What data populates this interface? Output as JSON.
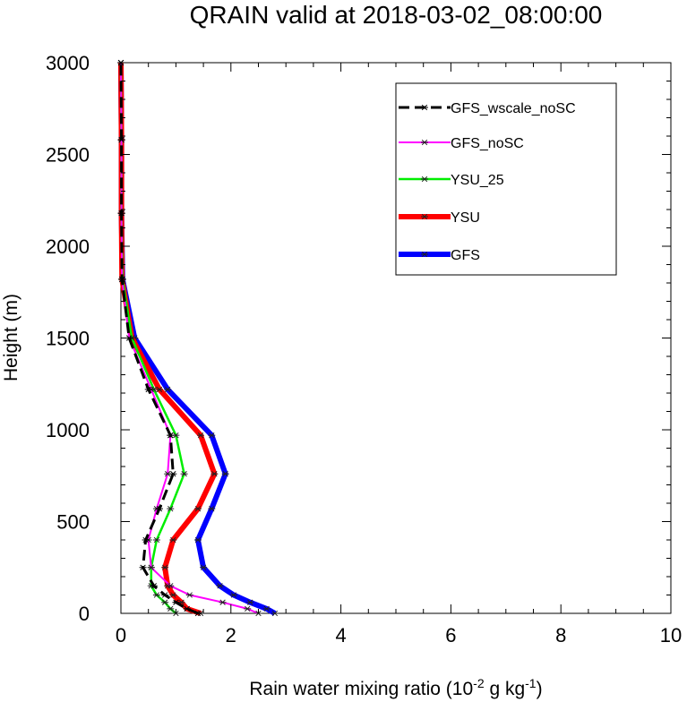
{
  "chart_data": {
    "type": "line",
    "title": "QRAIN valid at 2018-03-02_08:00:00",
    "xlabel": {
      "prefix": "Rain water mixing ratio (10",
      "exp1": "-2",
      "mid": " g kg",
      "exp2": "-1",
      "suffix": ")"
    },
    "ylabel": "Height (m)",
    "xlim": [
      0,
      10
    ],
    "ylim": [
      0,
      3000
    ],
    "xticks": [
      "0",
      "2",
      "4",
      "6",
      "8",
      "10"
    ],
    "yticks": [
      "0",
      "500",
      "1000",
      "1500",
      "2000",
      "2500",
      "3000"
    ],
    "grid": false,
    "legend_position": "top-right",
    "y_levels": [
      0,
      25,
      60,
      100,
      150,
      250,
      400,
      570,
      760,
      970,
      1220,
      1500,
      1820,
      2180,
      2580,
      3000
    ],
    "series": [
      {
        "name": "GFS_wscale_noSC",
        "color": "#000000",
        "dash": true,
        "values": [
          1.4,
          1.2,
          1.0,
          0.8,
          0.6,
          0.4,
          0.45,
          0.7,
          0.95,
          0.9,
          0.5,
          0.15,
          0.02,
          0.01,
          0.01,
          0.0
        ]
      },
      {
        "name": "GFS_noSC",
        "color": "#ff00ff",
        "values": [
          2.5,
          2.3,
          1.85,
          1.25,
          0.9,
          0.55,
          0.5,
          0.65,
          0.85,
          0.9,
          0.55,
          0.15,
          0.02,
          0.01,
          0.01,
          0.0
        ]
      },
      {
        "name": "YSU_25",
        "color": "#00ee00",
        "values": [
          1.0,
          0.9,
          0.8,
          0.65,
          0.55,
          0.55,
          0.65,
          0.9,
          1.15,
          1.0,
          0.6,
          0.2,
          0.03,
          0.01,
          0.01,
          0.0
        ]
      },
      {
        "name": "YSU",
        "color": "#ff0000",
        "values": [
          1.45,
          1.2,
          1.1,
          0.95,
          0.85,
          0.8,
          0.95,
          1.4,
          1.7,
          1.45,
          0.7,
          0.2,
          0.02,
          0.01,
          0.01,
          0.0
        ]
      },
      {
        "name": "GFS",
        "color": "#0000ff",
        "values": [
          2.8,
          2.65,
          2.35,
          2.05,
          1.8,
          1.5,
          1.4,
          1.65,
          1.9,
          1.65,
          0.85,
          0.25,
          0.03,
          0.01,
          0.01,
          0.0
        ]
      }
    ]
  }
}
